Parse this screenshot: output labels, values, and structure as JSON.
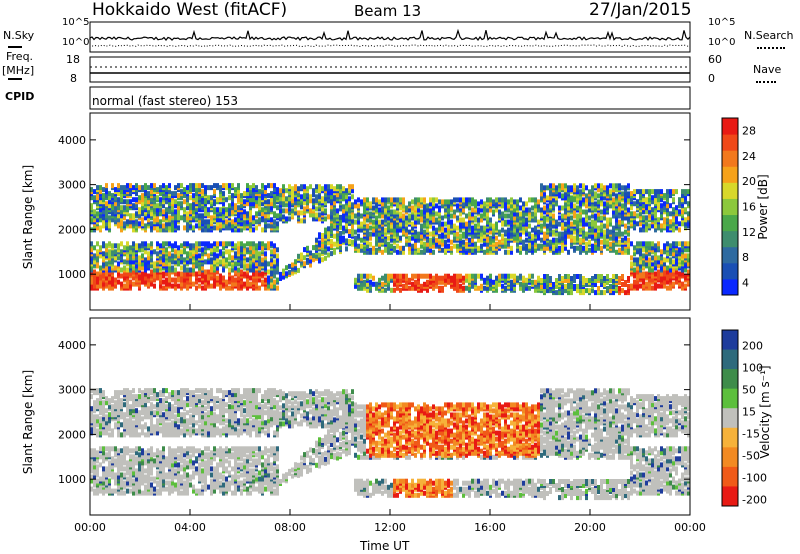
{
  "header": {
    "station": "Hokkaido West (fitACF)",
    "beam": "Beam 13",
    "date": "27/Jan/2015"
  },
  "top_panels": {
    "nsky_label": "N.Sky",
    "nsearch_label": "N.Search",
    "noise_left_ticks": [
      "10^5",
      "10^0"
    ],
    "noise_right_ticks": [
      "10^5",
      "10^0"
    ],
    "freq_label": "Freq.",
    "freq_unit": "[MHz]",
    "freq_ticks": [
      "18",
      "8"
    ],
    "nave_label": "Nave",
    "nave_ticks": [
      "60",
      "0"
    ],
    "cpid_label": "CPID",
    "cpid_text": "normal (fast stereo) 153"
  },
  "chart_data": [
    {
      "type": "heatmap",
      "name": "power",
      "ylabel": "Slant Range [km]",
      "ylim": [
        200,
        4600
      ],
      "y_ticks": [
        1000,
        2000,
        3000,
        4000
      ],
      "x_ticks": [
        "00:00",
        "04:00",
        "08:00",
        "12:00",
        "16:00",
        "20:00",
        "00:00"
      ],
      "colorbar": {
        "label": "Power [dB]",
        "ticks": [
          4,
          8,
          12,
          16,
          20,
          24,
          28
        ],
        "colors": [
          "#0a28ff",
          "#1a4fb4",
          "#2e6aa0",
          "#3e8d6e",
          "#4aa84a",
          "#8cc83c",
          "#d8d82a",
          "#f6a21a",
          "#f2781c",
          "#f04818",
          "#e81a14"
        ]
      }
    },
    {
      "type": "heatmap",
      "name": "velocity",
      "ylabel": "Slant Range [km]",
      "ylim": [
        200,
        4600
      ],
      "y_ticks": [
        1000,
        2000,
        3000,
        4000
      ],
      "x_ticks": [
        "00:00",
        "04:00",
        "08:00",
        "12:00",
        "16:00",
        "20:00",
        "00:00"
      ],
      "xlabel": "Time UT",
      "colorbar": {
        "label": "Velocity [m s⁻¹]",
        "ticks": [
          "200",
          "100",
          "50",
          "15",
          "-15",
          "-50",
          "-100",
          "-200"
        ],
        "colors": [
          "#1e3c9c",
          "#2e6a7c",
          "#3e8c4a",
          "#5cbf3c",
          "#c0c0bc",
          "#f6b23a",
          "#f28a22",
          "#f05a18",
          "#e81a14"
        ]
      }
    }
  ]
}
